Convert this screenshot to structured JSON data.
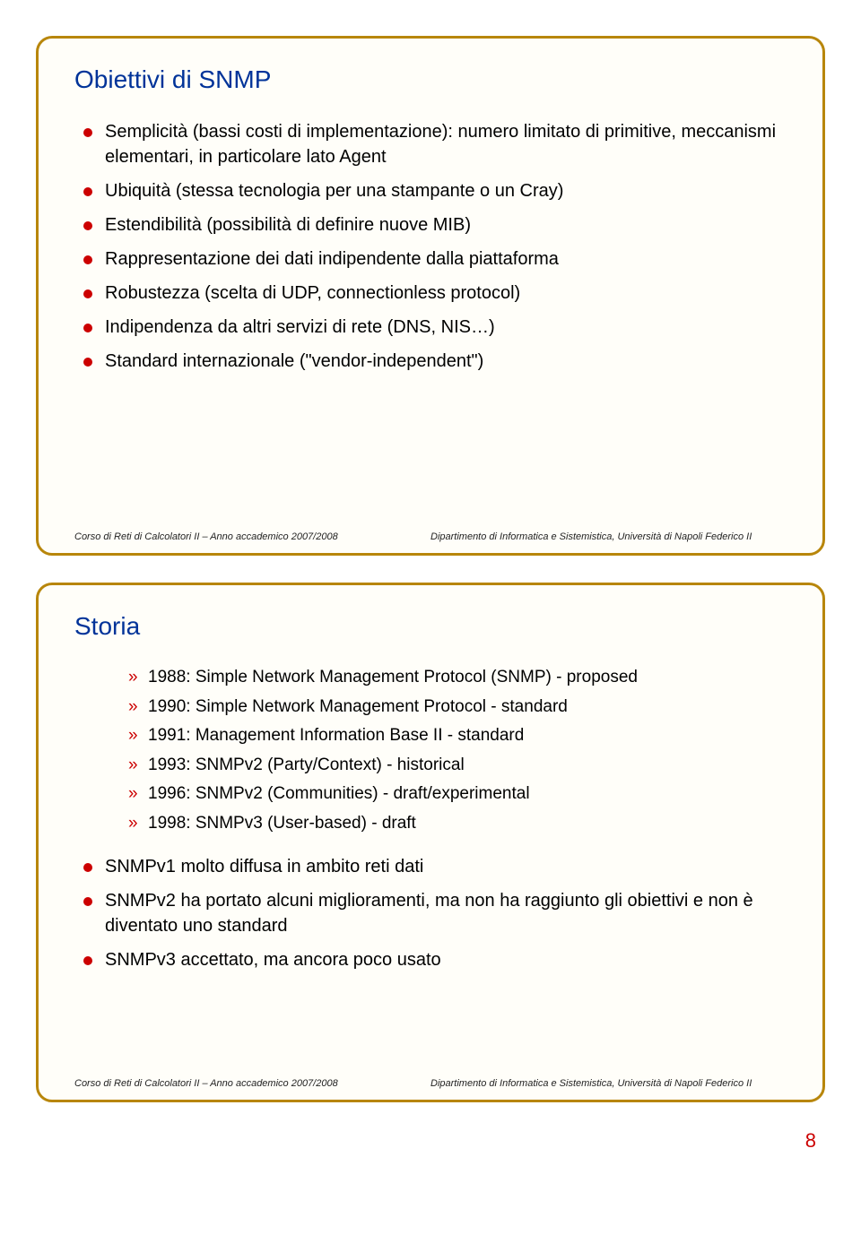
{
  "slide1": {
    "title": "Obiettivi di SNMP",
    "bullets": [
      "Semplicità (bassi costi di implementazione): numero limitato di primitive, meccanismi elementari, in particolare lato Agent",
      "Ubiquità (stessa tecnologia per una stampante o un Cray)",
      "Estendibilità (possibilità di definire nuove MIB)",
      "Rappresentazione dei dati indipendente dalla piattaforma",
      "Robustezza (scelta di UDP, connectionless protocol)",
      "Indipendenza da altri servizi di rete (DNS, NIS…)",
      "Standard internazionale (\"vendor-independent\")"
    ],
    "footer_left": "Corso di Reti di Calcolatori II – Anno accademico 2007/2008",
    "footer_right": "Dipartimento di Informatica e Sistemistica, Università di Napoli Federico II"
  },
  "slide2": {
    "title": "Storia",
    "sub_items": [
      "1988: Simple Network Management Protocol (SNMP) - proposed",
      "1990: Simple Network Management Protocol - standard",
      "1991: Management Information Base II - standard",
      "1993: SNMPv2 (Party/Context) - historical",
      "1996: SNMPv2 (Communities) - draft/experimental",
      "1998: SNMPv3 (User-based) - draft"
    ],
    "bullets": [
      "SNMPv1 molto diffusa in ambito reti dati",
      "SNMPv2 ha portato alcuni miglioramenti, ma non ha raggiunto gli obiettivi e non è diventato uno standard",
      "SNMPv3 accettato, ma ancora poco usato"
    ],
    "footer_left": "Corso di Reti di Calcolatori II – Anno accademico 2007/2008",
    "footer_right": "Dipartimento di Informatica e Sistemistica, Università di Napoli Federico II"
  },
  "page_number": "8",
  "colors": {
    "title": "#003399",
    "bullet": "#cc0000",
    "border": "#b8860b",
    "pagenum": "#cc0000"
  }
}
